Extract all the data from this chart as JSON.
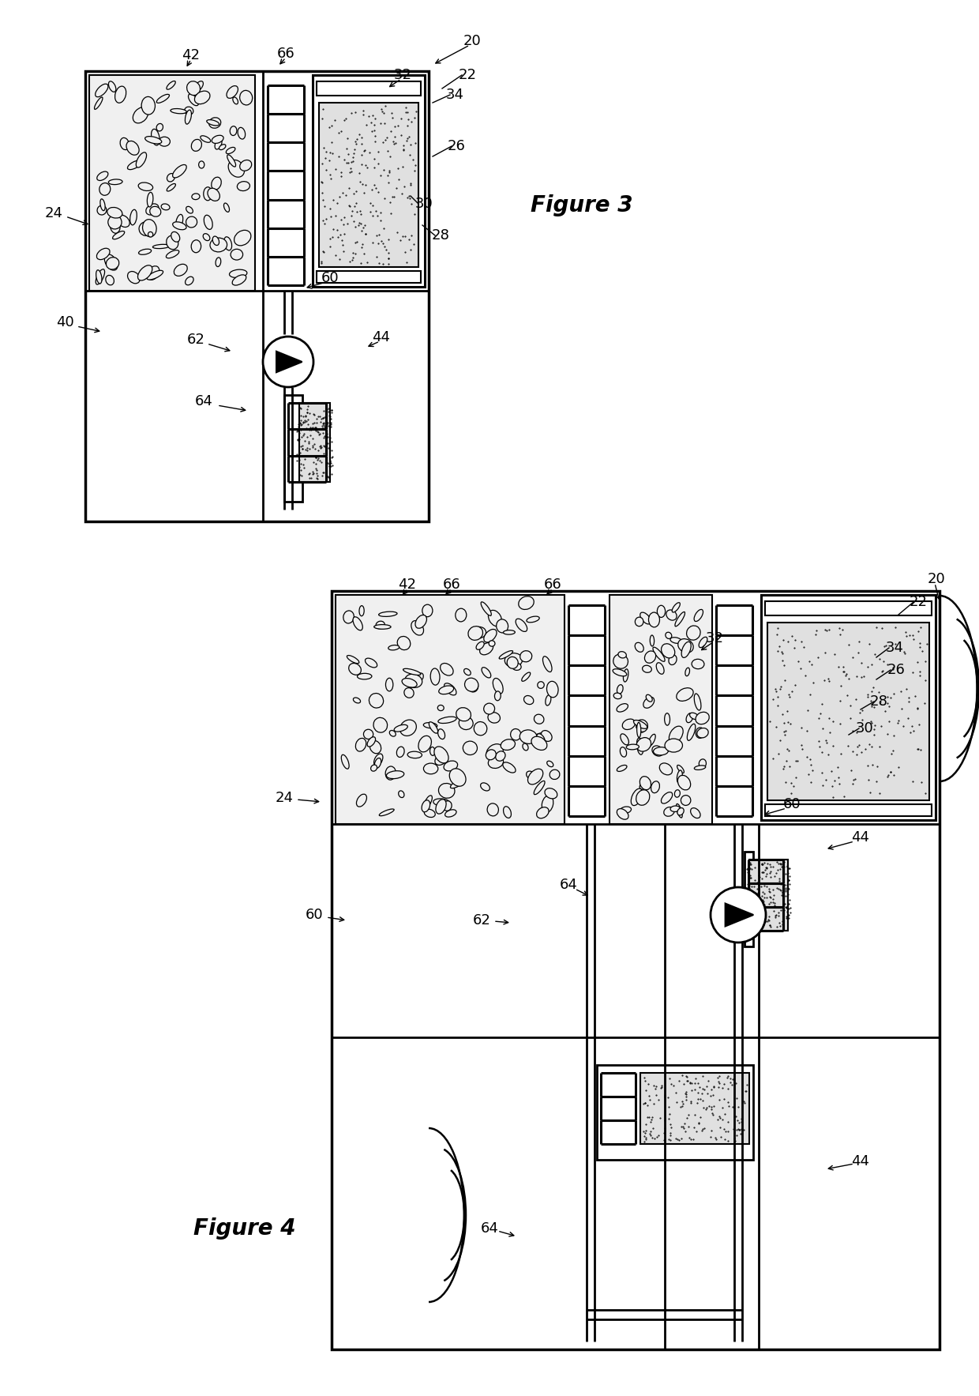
{
  "fig_width": 12.4,
  "fig_height": 17.67,
  "bg_color": "#ffffff"
}
